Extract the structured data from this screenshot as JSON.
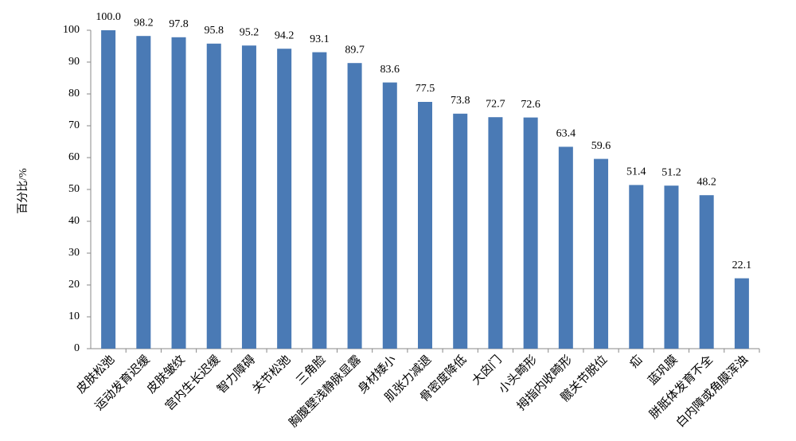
{
  "chart_data": {
    "type": "bar",
    "y_label": "百分比/%",
    "categories": [
      "皮肤松弛",
      "运动发育迟缓",
      "皮肤皱纹",
      "宫内生长迟缓",
      "智力障碍",
      "关节松弛",
      "三角脸",
      "胸腹壁浅静脉显露",
      "身材矮小",
      "肌张力减退",
      "骨密度降低",
      "大囟门",
      "小头畸形",
      "拇指内收畸形",
      "髋关节脱位",
      "疝",
      "蓝巩膜",
      "胼胝体发育不全",
      "白内障或角膜浑浊"
    ],
    "values": [
      100.0,
      98.2,
      97.8,
      95.8,
      95.2,
      94.2,
      93.1,
      89.7,
      83.6,
      77.5,
      73.8,
      72.7,
      72.6,
      63.4,
      59.6,
      51.4,
      51.2,
      48.2,
      22.1
    ],
    "value_labels": [
      "100.0",
      "98.2",
      "97.8",
      "95.8",
      "95.2",
      "94.2",
      "93.1",
      "89.7",
      "83.6",
      "77.5",
      "73.8",
      "72.7",
      "72.6",
      "63.4",
      "59.6",
      "51.4",
      "51.2",
      "48.2",
      "22.1"
    ],
    "color": "#4a7ab5",
    "ylim": [
      0,
      100
    ],
    "yticks": [
      0,
      10,
      20,
      30,
      40,
      50,
      60,
      70,
      80,
      90,
      100
    ],
    "grid": false
  }
}
